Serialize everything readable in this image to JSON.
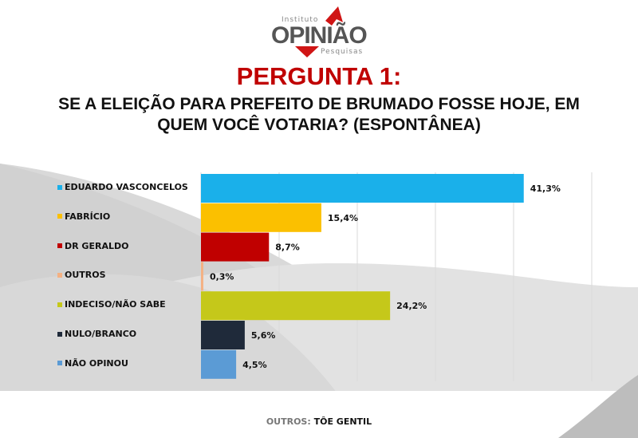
{
  "logo": {
    "top": "Instituto",
    "main": "OPINIÃO",
    "bottom": "Pesquisas"
  },
  "heading": "PERGUNTA 1:",
  "question_line1": "SE A ELEIÇÃO PARA PREFEITO DE BRUMADO FOSSE HOJE, EM",
  "question_line2": "QUEM VOCÊ VOTARIA? (ESPONTÂNEA)",
  "footnote": {
    "label": "OUTROS:",
    "value": "TÔE GENTIL"
  },
  "chart_data": {
    "type": "bar",
    "orientation": "horizontal",
    "categories": [
      "EDUARDO VASCONCELOS",
      "FABRÍCIO",
      "DR GERALDO",
      "OUTROS",
      "INDECISO/NÃO SABE",
      "NULO/BRANCO",
      "NÃO OPINOU"
    ],
    "values": [
      41.3,
      15.4,
      8.7,
      0.3,
      24.2,
      5.6,
      4.5
    ],
    "labels": [
      "41,3%",
      "15,4%",
      "8,7%",
      "0,3%",
      "24,2%",
      "5,6%",
      "4,5%"
    ],
    "colors": [
      "#1ab0ea",
      "#fbc000",
      "#c00000",
      "#f4b183",
      "#c5c81a",
      "#1f2a3a",
      "#5b9bd5"
    ],
    "xlim": [
      0,
      50
    ],
    "grid": true,
    "legend": "left"
  }
}
